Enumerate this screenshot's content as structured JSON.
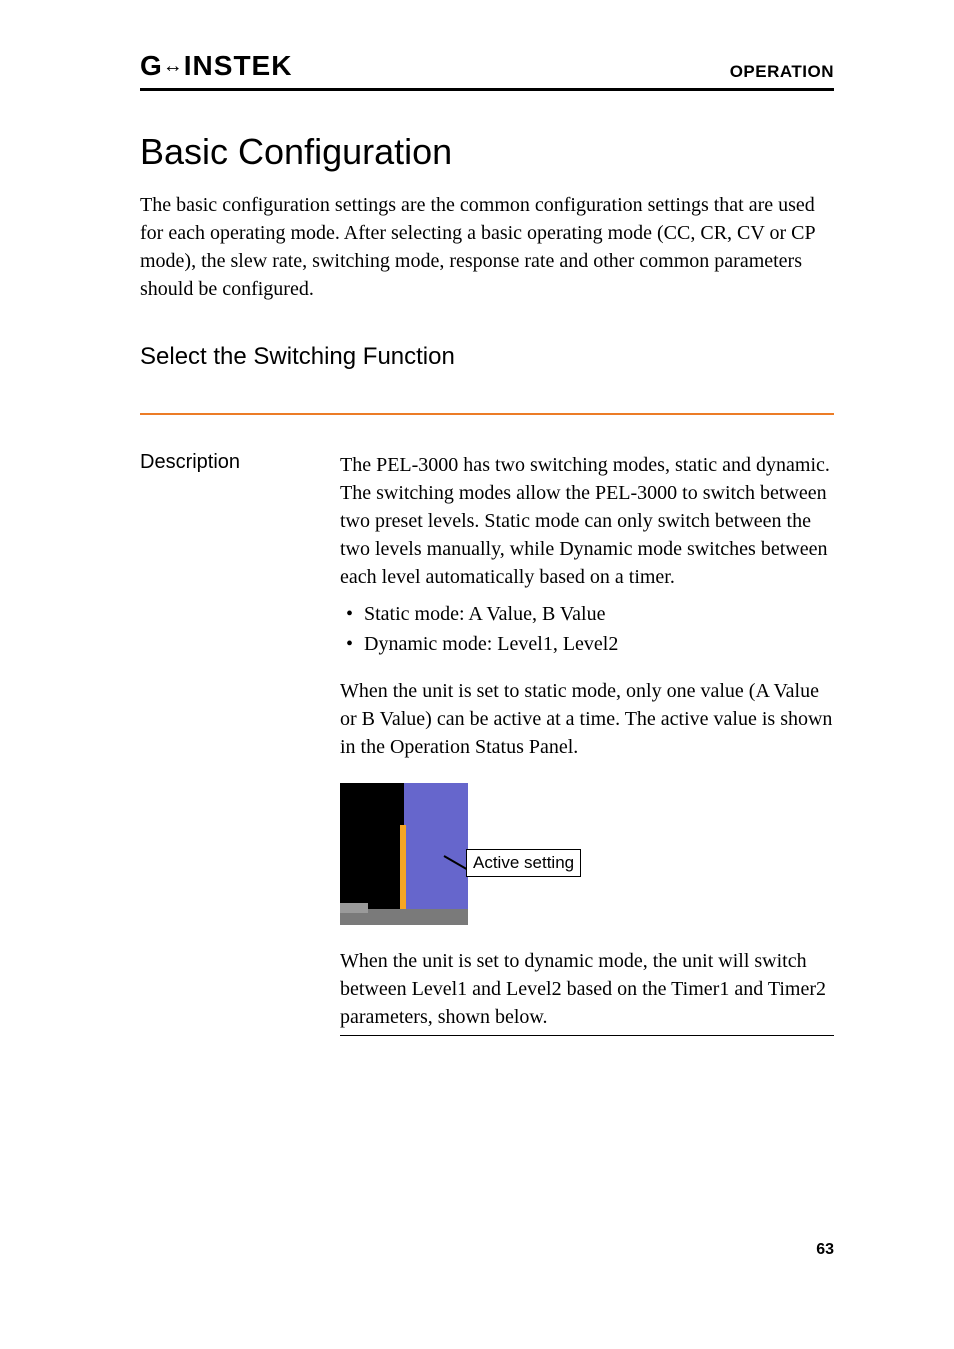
{
  "header": {
    "brand_g": "G",
    "brand_u": "←",
    "brand_rest": "INSTEK",
    "section": "OPERATION"
  },
  "title": "Basic Configuration",
  "intro": "The basic configuration settings are the common configuration settings that are used for each operating mode. After selecting a basic operating mode (CC, CR, CV or CP mode), the slew rate, switching mode, response rate and other common parameters should be configured.",
  "subsection": "Select the Switching Function",
  "description": {
    "label": "Description",
    "p1": "The PEL-3000 has two switching modes, static and dynamic. The switching modes allow the PEL-3000 to switch between two preset levels. Static mode can only switch between the two levels manually, while Dynamic mode switches between each level automatically based on a timer.",
    "bullets": [
      "Static mode: A Value, B Value",
      "Dynamic mode: Level1, Level2"
    ],
    "p2": "When the unit is set to static mode, only one value (A Value or B Value) can be active at a time. The active value is shown in the Operation Status Panel.",
    "callout": "Active setting",
    "p3": "When the unit is set to dynamic mode, the unit will switch between Level1 and Level2 based on the Timer1 and Timer2 parameters, shown below."
  },
  "page_number": "63",
  "colors": {
    "accent_rule": "#ec7c26",
    "diagram_purple": "#6666cc",
    "diagram_orange": "#f5a623",
    "diagram_gray": "#7a7a7a"
  }
}
